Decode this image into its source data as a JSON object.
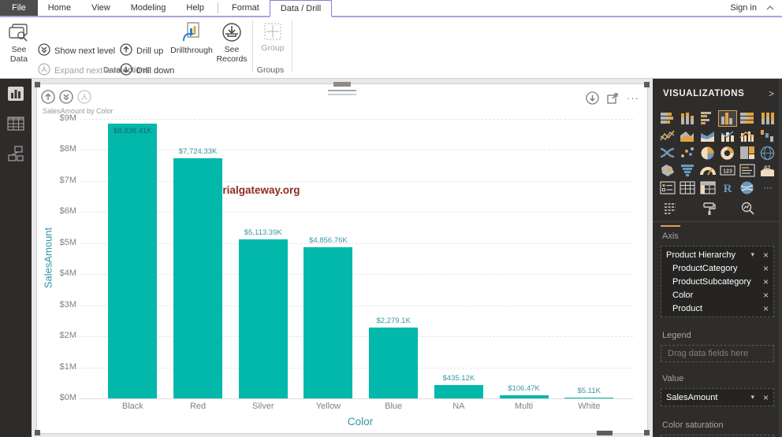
{
  "app": {
    "tabs": [
      {
        "label": "File",
        "style": "file"
      },
      {
        "label": "Home"
      },
      {
        "label": "View"
      },
      {
        "label": "Modeling"
      },
      {
        "label": "Help"
      },
      {
        "label": "Format",
        "sep_before": true
      },
      {
        "label": "Data / Drill",
        "active": true
      }
    ],
    "sign_in": "Sign in",
    "accent": "#8a80d0"
  },
  "ribbon": {
    "see_data_label": "See Data",
    "actions": [
      {
        "label": "Show next level",
        "icon": "show-next-level-icon",
        "enabled": true,
        "col": 0,
        "row": 0
      },
      {
        "label": "Expand next level",
        "icon": "expand-next-level-icon",
        "enabled": false,
        "col": 0,
        "row": 1
      },
      {
        "label": "Drill up",
        "icon": "drill-up-icon",
        "enabled": true,
        "col": 1,
        "row": 0
      },
      {
        "label": "Drill down",
        "icon": "drill-down-icon",
        "enabled": true,
        "col": 1,
        "row": 1
      }
    ],
    "drillthrough_label": "Drillthrough",
    "see_records_label": "See Records",
    "group_label": "Group",
    "section_labels": [
      "Data actions",
      "Groups"
    ]
  },
  "sidebar": {
    "views": [
      {
        "name": "report-view",
        "active": true
      },
      {
        "name": "data-view",
        "active": false
      },
      {
        "name": "model-view",
        "active": false
      }
    ]
  },
  "chart_data": {
    "type": "bar",
    "title": "SalesAmount by Color",
    "categories": [
      "Black",
      "Red",
      "Silver",
      "Yellow",
      "Blue",
      "NA",
      "Multi",
      "White"
    ],
    "values_thousands": [
      8838.41,
      7724.33,
      5113.39,
      4856.76,
      2279.1,
      435.12,
      106.47,
      5.11
    ],
    "data_labels": [
      "$8,838.41K",
      "$7,724.33K",
      "$5,113.39K",
      "$4,856.76K",
      "$2,279.1K",
      "$435.12K",
      "$106.47K",
      "$5.11K"
    ],
    "xlabel": "Color",
    "ylabel": "SalesAmount",
    "y_ticks": [
      "$9M",
      "$8M",
      "$7M",
      "$6M",
      "$5M",
      "$4M",
      "$3M",
      "$2M",
      "$1M",
      "$0M"
    ],
    "ylim_thousands": [
      0,
      9000
    ],
    "bar_color": "#01B8AA",
    "gridlines": true,
    "legend_position": "none",
    "watermark": "©tutorialgateway.org"
  },
  "visual_header": {
    "left_buttons": [
      {
        "name": "drill-up-button",
        "enabled": true
      },
      {
        "name": "show-next-level-button",
        "enabled": true
      },
      {
        "name": "expand-next-level-button",
        "enabled": false
      }
    ],
    "right_buttons": [
      "drill-mode-button",
      "focus-mode-button",
      "more-options-button"
    ]
  },
  "panel": {
    "title": "VISUALIZATIONS",
    "chevron": ">",
    "selected_visual": "clustered-column-chart",
    "viz_icons": [
      "stacked-bar-chart",
      "stacked-column-chart",
      "clustered-bar-chart",
      "clustered-column-chart",
      "100-stacked-bar-chart",
      "100-stacked-column-chart",
      "line-chart",
      "area-chart",
      "stacked-area-chart",
      "line-and-stacked-column-chart",
      "line-and-clustered-column-chart",
      "waterfall-chart",
      "ribbon-chart",
      "scatter-chart",
      "pie-chart",
      "donut-chart",
      "treemap",
      "map",
      "filled-map",
      "funnel",
      "gauge",
      "card",
      "multi-row-card",
      "kpi",
      "slicer",
      "table",
      "matrix",
      "r-script-visual",
      "arcgis-map",
      "more-options"
    ],
    "tabs": [
      {
        "name": "fields-tab",
        "active": true
      },
      {
        "name": "format-tab",
        "active": false
      },
      {
        "name": "analytics-tab",
        "active": false
      }
    ],
    "wells": {
      "axis": {
        "label": "Axis",
        "fields": [
          {
            "name": "Product Hierarchy",
            "caret": true,
            "indent": false
          },
          {
            "name": "ProductCategory",
            "caret": false,
            "indent": true
          },
          {
            "name": "ProductSubcategory",
            "caret": false,
            "indent": true
          },
          {
            "name": "Color",
            "caret": false,
            "indent": true
          },
          {
            "name": "Product",
            "caret": false,
            "indent": true
          }
        ]
      },
      "legend": {
        "label": "Legend",
        "placeholder": "Drag data fields here"
      },
      "value": {
        "label": "Value",
        "fields": [
          {
            "name": "SalesAmount",
            "caret": true,
            "indent": false
          }
        ]
      },
      "color_saturation": {
        "label": "Color saturation"
      }
    }
  }
}
